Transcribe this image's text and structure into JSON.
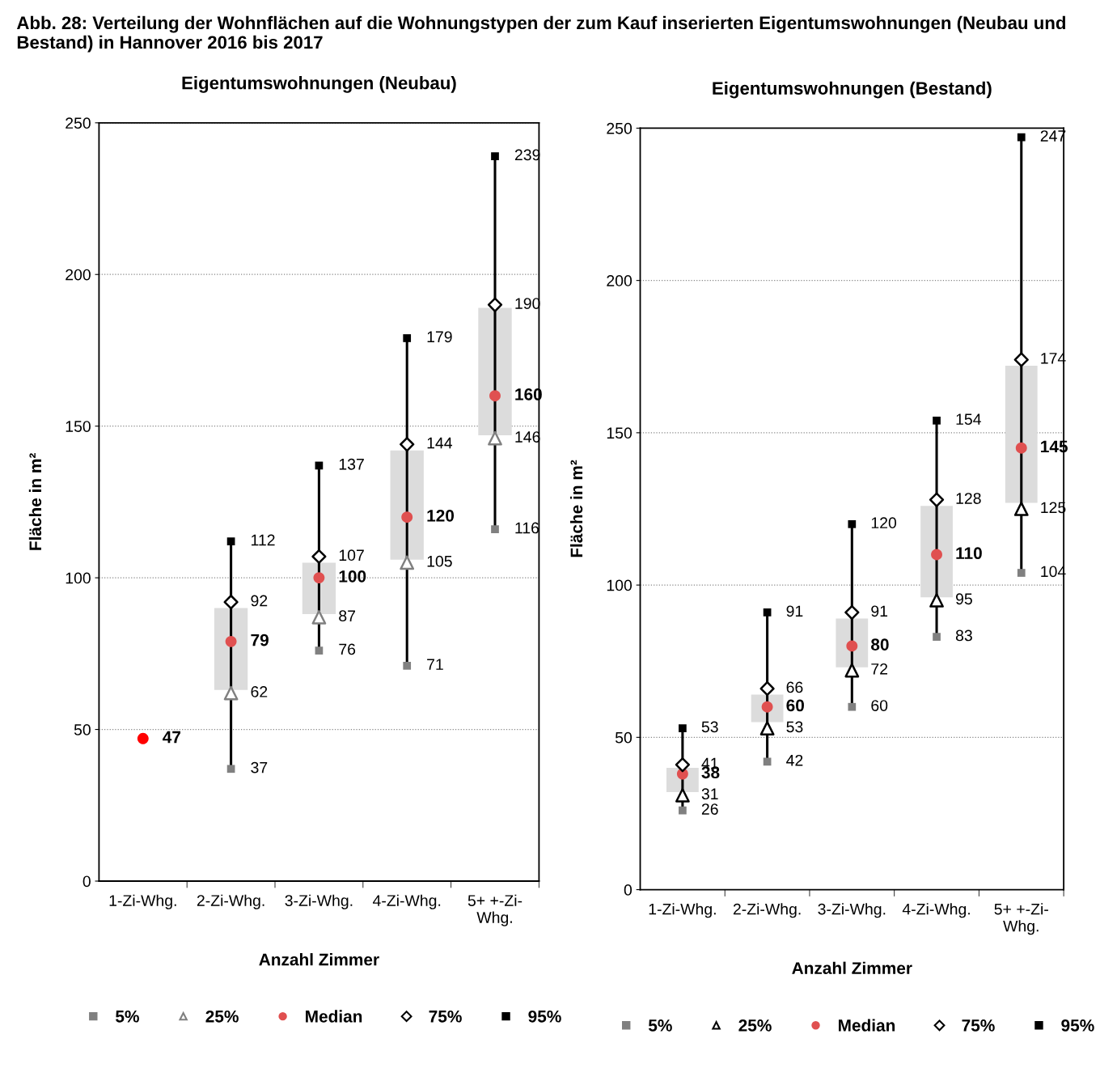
{
  "chart_data": [
    {
      "type": "scatter",
      "title": "Eigentumswohnungen (Neubau)",
      "xlabel": "Anzahl Zimmer",
      "ylabel": "Fläche in m²",
      "annotations": [
        "Abb. 28: Verteilung der Wohnflächen auf die Wohnungstypen der zum Kauf inserierten Eigentumswohnungen (Neubau und Bestand) in Hannover 2016 bis 2017"
      ],
      "categories": [
        "1-Zi-Whg.",
        "2-Zi-Whg.",
        "3-Zi-Whg.",
        "4-Zi-Whg.",
        "5+ +-Zi-\nWhg."
      ],
      "ylim": [
        0,
        250
      ],
      "yticks": [
        0,
        50,
        100,
        150,
        200,
        250
      ],
      "grid": "y",
      "legend": "bottom",
      "data_labels": true,
      "series": [
        {
          "type": "bar",
          "color": "#dcdcdc",
          "base": [
            null,
            63,
            88,
            106,
            147
          ],
          "values": [
            null,
            27,
            17,
            36,
            42
          ],
          "value_labels": [
            null,
            null,
            null,
            null,
            null
          ]
        },
        {
          "name": "5%",
          "marker": "square",
          "color": "#808080",
          "values": [
            null,
            37,
            76,
            71,
            116
          ]
        },
        {
          "name": "25%",
          "marker": "triangle",
          "color": "#808080",
          "values": [
            null,
            62,
            87,
            105,
            146
          ]
        },
        {
          "name": "Median",
          "marker": "circle",
          "color": "#e05050",
          "colors": [
            "#ff0000",
            "#e05050",
            "#e05050",
            "#e05050",
            "#e05050"
          ],
          "values": [
            47,
            79,
            100,
            120,
            160
          ]
        },
        {
          "name": "75%",
          "marker": "diamond",
          "color": "#000000",
          "values": [
            null,
            92,
            107,
            144,
            190
          ]
        },
        {
          "name": "95%",
          "marker": "square",
          "color": "#000000",
          "values": [
            null,
            112,
            137,
            179,
            239
          ]
        }
      ]
    },
    {
      "type": "scatter",
      "title": "Eigentumswohnungen (Bestand)",
      "xlabel": "Anzahl Zimmer",
      "ylabel": "Fläche in m²",
      "categories": [
        "1-Zi-Whg.",
        "2-Zi-Whg.",
        "3-Zi-Whg.",
        "4-Zi-Whg.",
        "5+ +-Zi-\nWhg."
      ],
      "ylim": [
        0,
        250
      ],
      "yticks": [
        0,
        50,
        100,
        150,
        200,
        250
      ],
      "grid": "y",
      "legend": "bottom",
      "data_labels": true,
      "series": [
        {
          "type": "bar",
          "color": "#dcdcdc",
          "base": [
            32,
            55,
            73,
            96,
            127
          ],
          "values": [
            8,
            9,
            16,
            30,
            45
          ],
          "value_labels": [
            null,
            null,
            null,
            null,
            null
          ]
        },
        {
          "name": "5%",
          "marker": "square",
          "color": "#808080",
          "values": [
            26,
            42,
            60,
            83,
            104
          ]
        },
        {
          "name": "25%",
          "marker": "triangle",
          "color": "#000000",
          "values": [
            31,
            53,
            72,
            95,
            125
          ]
        },
        {
          "name": "Median",
          "marker": "circle",
          "color": "#e05050",
          "values": [
            38,
            60,
            80,
            110,
            145
          ]
        },
        {
          "name": "75%",
          "marker": "diamond",
          "color": "#000000",
          "values": [
            41,
            66,
            91,
            128,
            174
          ]
        },
        {
          "name": "95%",
          "marker": "square",
          "color": "#000000",
          "values": [
            53,
            91,
            120,
            154,
            247
          ]
        }
      ]
    }
  ]
}
